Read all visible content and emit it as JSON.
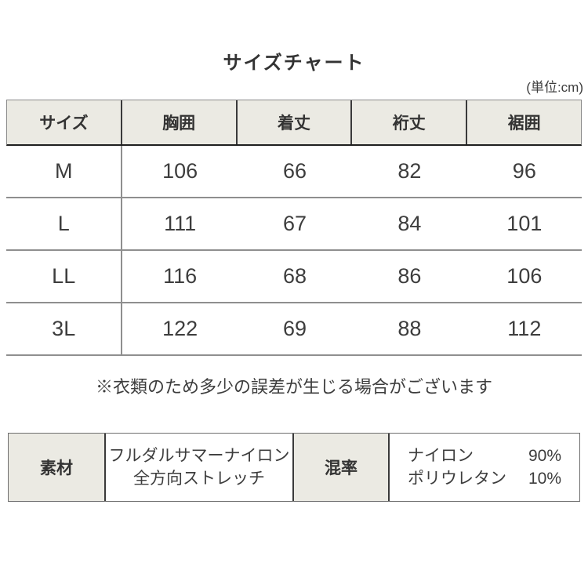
{
  "header": {
    "title": "サイズチャート",
    "unit_note": "(単位:cm)"
  },
  "chart_data": {
    "type": "table",
    "title": "サイズチャート",
    "unit": "cm",
    "columns": [
      "サイズ",
      "胸囲",
      "着丈",
      "裄丈",
      "裾囲"
    ],
    "rows": [
      [
        "M",
        106,
        66,
        82,
        96
      ],
      [
        "L",
        111,
        67,
        84,
        101
      ],
      [
        "LL",
        116,
        68,
        86,
        106
      ],
      [
        "3L",
        122,
        69,
        88,
        112
      ]
    ],
    "note": "※衣類のため多少の誤差が生じる場合がございます",
    "material": "フルダルサマーナイロン 全方向ストレッチ",
    "composition": [
      {
        "name": "ナイロン",
        "pct": "90%"
      },
      {
        "name": "ポリウレタン",
        "pct": "10%"
      }
    ]
  },
  "disclaimer": "※衣類のため多少の誤差が生じる場合がございます",
  "spec_table": {
    "material_label": "素材",
    "material_line1": "フルダルサマーナイロン",
    "material_line2": "全方向ストレッチ",
    "blend_label": "混率",
    "blend_rows": [
      {
        "name": "ナイロン",
        "pct": "90%"
      },
      {
        "name": "ポリウレタン",
        "pct": "10%"
      }
    ]
  },
  "colors": {
    "cell_bg": "#ebeae3",
    "text_heading": "#333333",
    "text_body": "#3d3d3d",
    "line_gray": "#8f8f8f",
    "line_dark": "#1f1f1f"
  }
}
